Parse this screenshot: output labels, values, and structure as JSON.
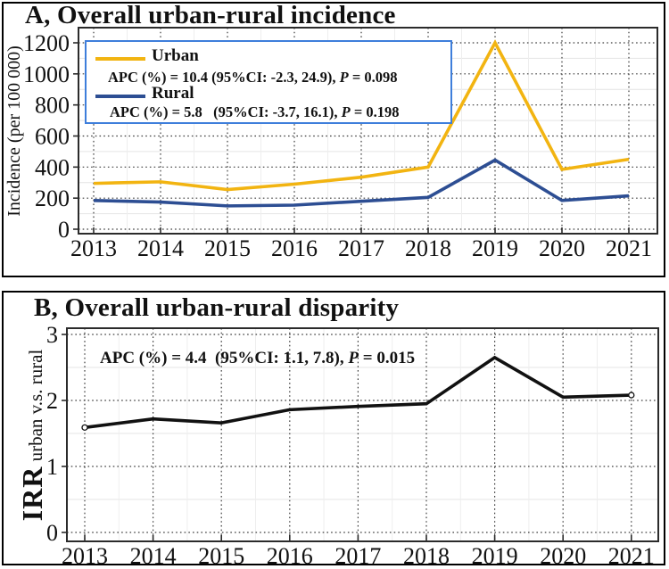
{
  "figure": {
    "accent_colors": {
      "urban_line": "#F2B411",
      "rural_line": "#2D4E93",
      "irr_line": "#111111",
      "legend_border": "#3E7EDB"
    }
  },
  "panel_a": {
    "title": "A, Overall urban-rural incidence",
    "y_axis_label": "Incidence (per 100 000)",
    "legend": {
      "urban_label": "Urban",
      "urban_apc_prefix": "APC (%) = 10.4 (95%CI: -2.3, 24.9), ",
      "urban_p_italic": "P",
      "urban_p_suffix": " = 0.098",
      "rural_label": "Rural",
      "rural_apc_prefix": "APC (%) = 5.8   (95%CI: -3.7, 16.1), ",
      "rural_p_italic": "P",
      "rural_p_suffix": " = 0.198"
    }
  },
  "panel_b": {
    "title": "B, Overall urban-rural disparity",
    "y_axis_label_main": "IRR",
    "y_axis_label_sub": " urban v.s. rural",
    "annotation_prefix": "APC (%) = 4.4  (95%CI: 1.1, 7.8), ",
    "annotation_p_italic": "P",
    "annotation_p_suffix": " = 0.015"
  },
  "chart_data": [
    {
      "type": "line",
      "name": "overall-urban-rural-incidence",
      "title": "A, Overall urban-rural incidence",
      "xlabel": "",
      "ylabel": "Incidence (per 100 000)",
      "x": [
        2013,
        2014,
        2015,
        2016,
        2017,
        2018,
        2019,
        2020,
        2021
      ],
      "series": [
        {
          "name": "Urban",
          "color": "#F2B411",
          "values": [
            295,
            305,
            255,
            290,
            335,
            400,
            1200,
            385,
            450
          ],
          "apc_note": "APC (%) = 10.4 (95%CI: -2.3, 24.9), P = 0.098"
        },
        {
          "name": "Rural",
          "color": "#2D4E93",
          "values": [
            185,
            175,
            150,
            155,
            180,
            205,
            445,
            185,
            215
          ],
          "apc_note": "APC (%) = 5.8 (95%CI: -3.7, 16.1), P = 0.198"
        }
      ],
      "ylim": [
        0,
        1200
      ],
      "yticks": [
        0,
        200,
        400,
        600,
        800,
        1000,
        1200
      ],
      "yticks_minor": [
        100,
        300,
        500,
        700,
        900,
        1100
      ],
      "grid": "dotted-major-with-faint-minor",
      "legend_position": "top-left"
    },
    {
      "type": "line",
      "name": "overall-urban-rural-disparity",
      "title": "B, Overall urban-rural disparity",
      "xlabel": "",
      "ylabel": "IRR urban v.s. rural",
      "x": [
        2013,
        2014,
        2015,
        2016,
        2017,
        2018,
        2019,
        2020,
        2021
      ],
      "series": [
        {
          "name": "IRR urban vs rural",
          "color": "#111111",
          "values": [
            1.59,
            1.72,
            1.66,
            1.86,
            1.91,
            1.95,
            2.65,
            2.05,
            2.08
          ],
          "endpoint_markers": true,
          "apc_note": "APC (%) = 4.4 (95%CI: 1.1, 7.8), P = 0.015"
        }
      ],
      "ylim": [
        0,
        3
      ],
      "yticks": [
        0,
        1,
        2,
        3
      ],
      "yticks_minor": [
        0.5,
        1.5,
        2.5
      ],
      "grid": "dotted-major-with-faint-minor",
      "legend_position": "none"
    }
  ]
}
